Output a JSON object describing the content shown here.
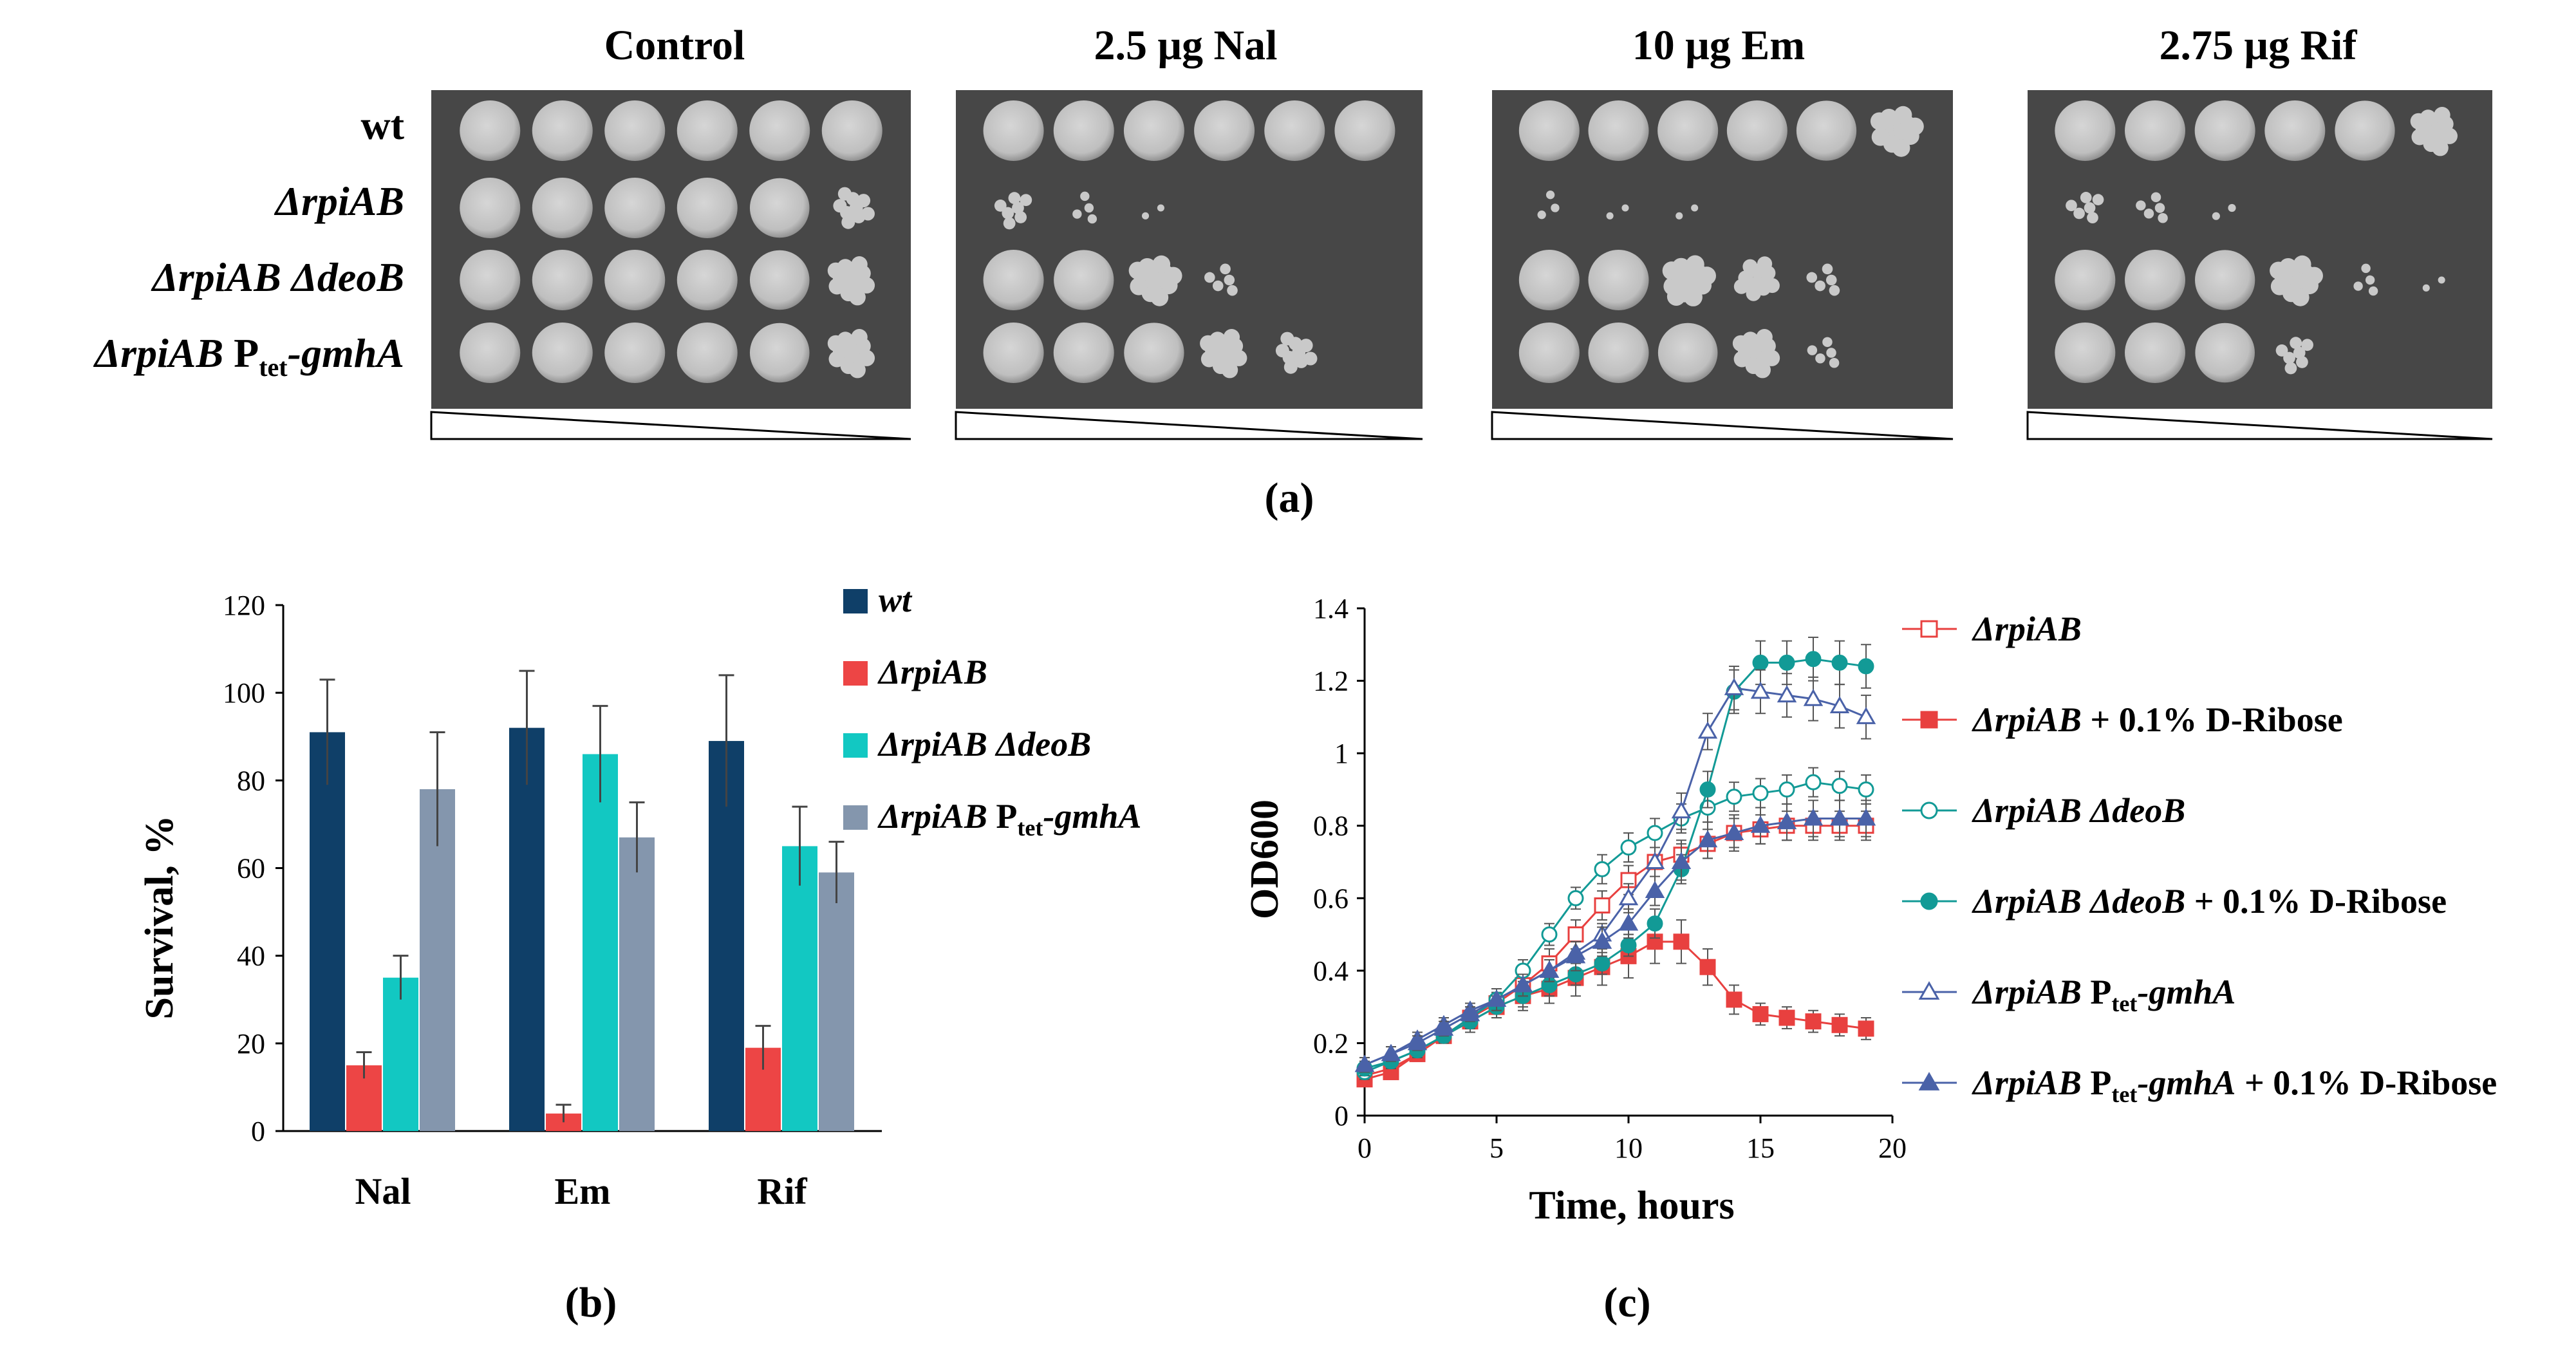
{
  "panel_a": {
    "panel_label": "(a)",
    "conditions": [
      "Control",
      "2.5 μg Nal",
      "10 μg Em",
      "2.75 μg Rif"
    ],
    "strains": [
      "wt",
      "ΔrpiAB",
      "ΔrpiAB ΔdeoB",
      "ΔrpiAB Ptet-gmhA"
    ],
    "strain_labels": {
      "wt": "wt",
      "rpiab": "ΔrpiAB",
      "deob_a": "ΔrpiAB",
      "deob_b": "ΔdeoB",
      "gmha_a": "ΔrpiAB",
      "gmha_p": "P",
      "gmha_sub": "tet",
      "gmha_g": "-gmhA"
    },
    "dilution_spots_per_row": 6,
    "growth_scores_0_to_1": [
      [
        [
          1,
          1,
          1,
          1,
          1,
          1
        ],
        [
          1,
          1,
          1,
          1,
          0.9,
          0.5
        ],
        [
          1,
          1,
          1,
          1,
          0.9,
          0.7
        ],
        [
          1,
          1,
          1,
          1,
          0.9,
          0.7
        ]
      ],
      [
        [
          1,
          1,
          1,
          1,
          1,
          1
        ],
        [
          0.4,
          0.2,
          0.05,
          0,
          0,
          0
        ],
        [
          1,
          0.95,
          0.8,
          0.3,
          0,
          0
        ],
        [
          1,
          1,
          0.95,
          0.7,
          0.5,
          0
        ]
      ],
      [
        [
          1,
          1,
          1,
          1,
          0.95,
          0.8
        ],
        [
          0.15,
          0.05,
          0.05,
          0,
          0,
          0
        ],
        [
          1,
          1,
          0.85,
          0.6,
          0.3,
          0
        ],
        [
          1,
          1,
          0.9,
          0.7,
          0.25,
          0
        ]
      ],
      [
        [
          1,
          1,
          1,
          1,
          0.95,
          0.7
        ],
        [
          0.35,
          0.25,
          0.1,
          0,
          0,
          0
        ],
        [
          1,
          1,
          0.95,
          0.8,
          0.2,
          0.05
        ],
        [
          1,
          1,
          0.9,
          0.4,
          0,
          0
        ]
      ]
    ]
  },
  "chart_data": [
    {
      "type": "bar",
      "panel_label": "(b)",
      "title": "",
      "xlabel": "",
      "ylabel": "Survival, %",
      "ylim": [
        0,
        120
      ],
      "yticks": [
        "0",
        "20",
        "40",
        "60",
        "80",
        "100",
        "120"
      ],
      "categories": [
        "Nal",
        "Em",
        "Rif"
      ],
      "series": [
        {
          "name": "wt",
          "color": "#0f3f68",
          "values": [
            91,
            92,
            89
          ],
          "errors": [
            12,
            13,
            15
          ]
        },
        {
          "name": "ΔrpiAB",
          "color": "#ed4545",
          "values": [
            15,
            4,
            19
          ],
          "errors": [
            3,
            2,
            5
          ]
        },
        {
          "name": "ΔrpiAB ΔdeoB",
          "color": "#12c8c2",
          "values": [
            35,
            86,
            65
          ],
          "errors": [
            5,
            11,
            9
          ]
        },
        {
          "name": "ΔrpiAB Ptet-gmhA",
          "color": "#8496ad",
          "values": [
            78,
            67,
            59
          ],
          "errors": [
            13,
            8,
            7
          ]
        }
      ],
      "legend_labels": {
        "wt": "wt",
        "rpiab": "ΔrpiAB",
        "deob_a": "ΔrpiAB",
        "deob_b": "ΔdeoB",
        "gmha_a": "ΔrpiAB",
        "gmha_p": "P",
        "gmha_sub": "tet",
        "gmha_g": "-gmhA"
      },
      "legend_position": "right"
    },
    {
      "type": "line",
      "panel_label": "(c)",
      "title": "",
      "xlabel": "Time, hours",
      "ylabel": "OD600",
      "xlim": [
        0,
        20
      ],
      "ylim": [
        0,
        1.4
      ],
      "xticks": [
        "0",
        "5",
        "10",
        "15",
        "20"
      ],
      "yticks": [
        "0",
        "0.2",
        "0.4",
        "0.6",
        "0.8",
        "1",
        "1.2",
        "1.4"
      ],
      "x": [
        0,
        1,
        2,
        3,
        4,
        5,
        6,
        7,
        8,
        9,
        10,
        11,
        12,
        13,
        14,
        15,
        16,
        17,
        18,
        19
      ],
      "series": [
        {
          "name": "ΔrpiAB",
          "color": "#e8403f",
          "marker": "square",
          "filled": false,
          "values": [
            0.11,
            0.13,
            0.17,
            0.22,
            0.27,
            0.31,
            0.36,
            0.42,
            0.5,
            0.58,
            0.65,
            0.7,
            0.72,
            0.75,
            0.78,
            0.79,
            0.8,
            0.8,
            0.8,
            0.8
          ],
          "errors": [
            0.02,
            0.02,
            0.02,
            0.02,
            0.03,
            0.03,
            0.03,
            0.04,
            0.04,
            0.04,
            0.04,
            0.04,
            0.04,
            0.04,
            0.04,
            0.04,
            0.04,
            0.04,
            0.04,
            0.04
          ]
        },
        {
          "name": "ΔrpiAB + 0.1% D-Ribose",
          "color": "#e8403f",
          "marker": "square",
          "filled": true,
          "values": [
            0.1,
            0.12,
            0.17,
            0.22,
            0.26,
            0.3,
            0.33,
            0.35,
            0.38,
            0.41,
            0.44,
            0.48,
            0.48,
            0.41,
            0.32,
            0.28,
            0.27,
            0.26,
            0.25,
            0.24
          ],
          "errors": [
            0.02,
            0.02,
            0.02,
            0.02,
            0.03,
            0.03,
            0.04,
            0.04,
            0.05,
            0.05,
            0.06,
            0.06,
            0.06,
            0.05,
            0.04,
            0.03,
            0.03,
            0.03,
            0.03,
            0.03
          ]
        },
        {
          "name": "ΔrpiAB ΔdeoB",
          "color": "#129a96",
          "marker": "circle",
          "filled": false,
          "values": [
            0.12,
            0.15,
            0.18,
            0.22,
            0.27,
            0.32,
            0.4,
            0.5,
            0.6,
            0.68,
            0.74,
            0.78,
            0.82,
            0.85,
            0.88,
            0.89,
            0.9,
            0.92,
            0.91,
            0.9
          ],
          "errors": [
            0.02,
            0.02,
            0.02,
            0.02,
            0.02,
            0.03,
            0.03,
            0.03,
            0.03,
            0.04,
            0.04,
            0.04,
            0.04,
            0.04,
            0.04,
            0.04,
            0.04,
            0.04,
            0.04,
            0.04
          ]
        },
        {
          "name": "ΔrpiAB ΔdeoB + 0.1% D-Ribose",
          "color": "#129a96",
          "marker": "circle",
          "filled": true,
          "values": [
            0.13,
            0.15,
            0.18,
            0.22,
            0.26,
            0.3,
            0.33,
            0.36,
            0.39,
            0.42,
            0.47,
            0.53,
            0.68,
            0.9,
            1.17,
            1.25,
            1.25,
            1.26,
            1.25,
            1.24
          ],
          "errors": [
            0.02,
            0.02,
            0.02,
            0.02,
            0.02,
            0.03,
            0.03,
            0.03,
            0.03,
            0.03,
            0.03,
            0.04,
            0.04,
            0.05,
            0.06,
            0.06,
            0.06,
            0.06,
            0.06,
            0.06
          ]
        },
        {
          "name": "ΔrpiAB Ptet-gmhA",
          "color": "#4a62a8",
          "marker": "triangle",
          "filled": false,
          "values": [
            0.14,
            0.17,
            0.21,
            0.25,
            0.29,
            0.32,
            0.36,
            0.4,
            0.45,
            0.5,
            0.6,
            0.7,
            0.84,
            1.06,
            1.18,
            1.17,
            1.16,
            1.15,
            1.13,
            1.1
          ],
          "errors": [
            0.02,
            0.02,
            0.02,
            0.02,
            0.02,
            0.03,
            0.03,
            0.03,
            0.03,
            0.03,
            0.04,
            0.04,
            0.05,
            0.05,
            0.06,
            0.06,
            0.06,
            0.06,
            0.06,
            0.06
          ]
        },
        {
          "name": "ΔrpiAB Ptet-gmhA + 0.1% D-Ribose",
          "color": "#4a62a8",
          "marker": "triangle",
          "filled": true,
          "values": [
            0.14,
            0.17,
            0.2,
            0.24,
            0.28,
            0.32,
            0.36,
            0.4,
            0.44,
            0.48,
            0.53,
            0.62,
            0.7,
            0.76,
            0.78,
            0.8,
            0.81,
            0.82,
            0.82,
            0.82
          ],
          "errors": [
            0.02,
            0.02,
            0.02,
            0.02,
            0.02,
            0.03,
            0.03,
            0.03,
            0.04,
            0.04,
            0.04,
            0.04,
            0.05,
            0.05,
            0.05,
            0.05,
            0.05,
            0.05,
            0.05,
            0.05
          ]
        }
      ],
      "legend_labels": {
        "r1_a": "ΔrpiAB",
        "r2_a": "ΔrpiAB",
        "r2_b": " + 0.1% D-Ribose",
        "r3_a": "ΔrpiAB",
        "r3_b": "ΔdeoB",
        "r4_a": "ΔrpiAB",
        "r4_b": "ΔdeoB",
        "r4_c": " + 0.1% D-Ribose",
        "r5_a": "ΔrpiAB",
        "r5_p": "P",
        "r5_sub": "tet",
        "r5_g": "-gmhA",
        "r6_a": "ΔrpiAB",
        "r6_p": "P",
        "r6_sub": "tet",
        "r6_g": "-gmhA",
        "r6_c": " + 0.1% D-Ribose"
      },
      "legend_position": "right"
    }
  ]
}
